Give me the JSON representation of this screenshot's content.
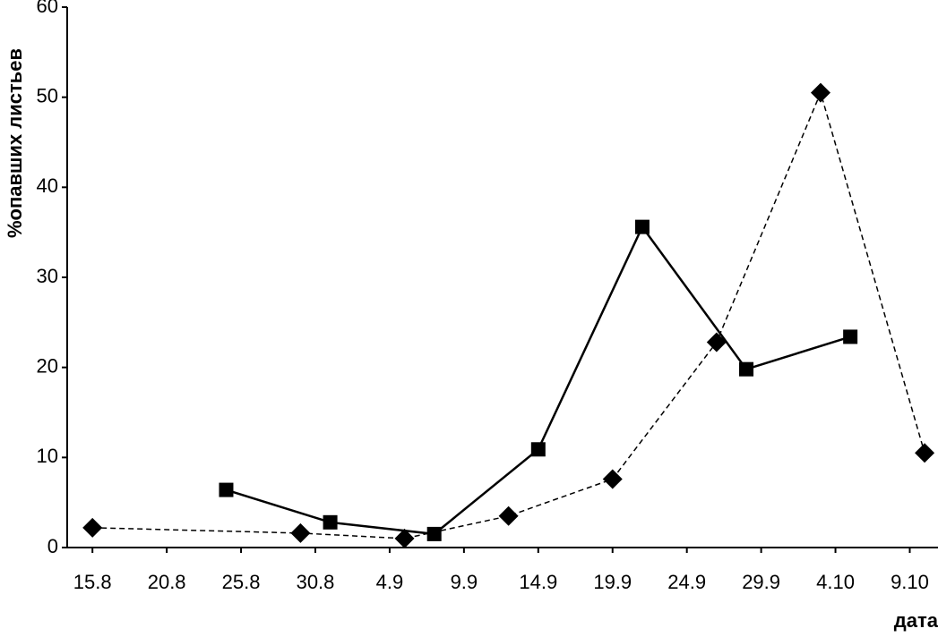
{
  "chart_data": {
    "type": "line",
    "xlabel": "дата",
    "ylabel": "%опавших листьев",
    "xlim": [
      -1.7,
      56.9
    ],
    "xticks": [
      {
        "value": 0,
        "label": "15.8"
      },
      {
        "value": 5,
        "label": "20.8"
      },
      {
        "value": 10,
        "label": "25.8"
      },
      {
        "value": 15,
        "label": "30.8"
      },
      {
        "value": 20,
        "label": "4.9"
      },
      {
        "value": 25,
        "label": "9.9"
      },
      {
        "value": 30,
        "label": "14.9"
      },
      {
        "value": 35,
        "label": "19.9"
      },
      {
        "value": 40,
        "label": "24.9"
      },
      {
        "value": 45,
        "label": "29.9"
      },
      {
        "value": 50,
        "label": "4.10"
      },
      {
        "value": 55,
        "label": "9.10"
      }
    ],
    "ylim": [
      0,
      60
    ],
    "yticks": [
      0,
      10,
      20,
      30,
      40,
      50,
      60
    ],
    "series": [
      {
        "color": "#000000",
        "dash": false,
        "marker": "square",
        "x": [
          9,
          16,
          23,
          30,
          37,
          44,
          51
        ],
        "values": [
          6.4,
          2.8,
          1.5,
          10.9,
          35.6,
          19.8,
          23.4
        ]
      },
      {
        "color": "#000000",
        "dash": true,
        "marker": "diamond",
        "x": [
          0,
          14,
          21,
          28,
          35,
          42,
          49,
          56
        ],
        "values": [
          2.2,
          1.6,
          1.0,
          3.5,
          7.6,
          22.8,
          50.5,
          10.5
        ]
      }
    ]
  }
}
